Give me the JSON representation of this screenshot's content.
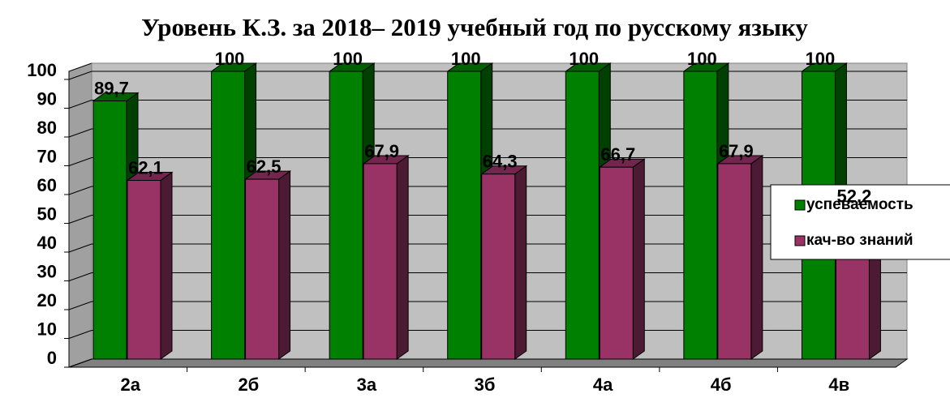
{
  "chart_data": {
    "type": "bar3d",
    "title": "Уровень К.З. за 2018– 2019 учебный год по русскому языку",
    "categories": [
      "2а",
      "2б",
      "3а",
      "3б",
      "4а",
      "4б",
      "4в"
    ],
    "series": [
      {
        "name": "успеваемость",
        "color": "#008000",
        "values": [
          89.7,
          100,
          100,
          100,
          100,
          100,
          100
        ],
        "value_labels": [
          "89,7",
          "100",
          "100",
          "100",
          "100",
          "100",
          "100"
        ]
      },
      {
        "name": "кач-во знаний",
        "color": "#993366",
        "values": [
          62.1,
          62.5,
          67.9,
          64.3,
          66.7,
          67.9,
          52.2
        ],
        "value_labels": [
          "62,1",
          "62,5",
          "67,9",
          "64,3",
          "66,7",
          "67,9",
          "52,2"
        ]
      }
    ],
    "ylim": [
      0,
      100
    ],
    "yticks": [
      0,
      10,
      20,
      30,
      40,
      50,
      60,
      70,
      80,
      90,
      100
    ],
    "grid": true,
    "legend": "right"
  }
}
